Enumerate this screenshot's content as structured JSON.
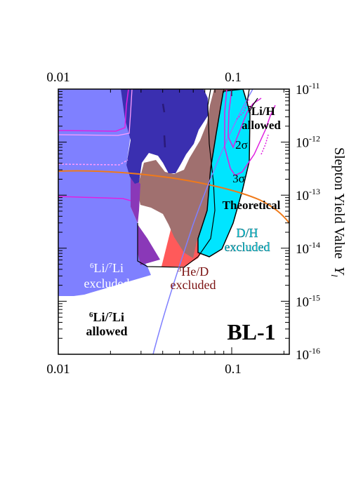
{
  "chart_data": {
    "type": "area",
    "title": "BL-1",
    "xlabel": "",
    "ylabel": "Slepton Yield Value",
    "ylabel_symbol": "Y",
    "ylabel_subscript": "l",
    "x_scale": "log",
    "y_scale": "log",
    "xlim": [
      0.01,
      0.2
    ],
    "ylim_exponents": [
      -16,
      -11
    ],
    "x_tick_labels": [
      "0.01",
      "0.1"
    ],
    "y_tick_labels": [
      {
        "base": "10",
        "exp": "-11"
      },
      {
        "base": "10",
        "exp": "-12"
      },
      {
        "base": "10",
        "exp": "-13"
      },
      {
        "base": "10",
        "exp": "-14"
      },
      {
        "base": "10",
        "exp": "-15"
      },
      {
        "base": "10",
        "exp": "-16"
      }
    ],
    "regions": [
      {
        "name": "6Li/7Li excluded",
        "color": "#7f80ff"
      },
      {
        "name": "3He/D excluded",
        "color": "#ff5a5a"
      },
      {
        "name": "D/H excluded",
        "color": "#00e5ff"
      },
      {
        "name": "overlap",
        "color": "#3a2fb0"
      }
    ],
    "curves": [
      {
        "name": "Theoretical",
        "color": "#f07a1a"
      },
      {
        "name": "2σ",
        "color": "#e020e0"
      },
      {
        "name": "3σ",
        "color": "#e020e0"
      }
    ],
    "annotations": {
      "li67_excluded": {
        "line1_pre": "6",
        "line1_mid": "Li/",
        "line1_sup": "7",
        "line1_post": "Li",
        "line2": "excluded"
      },
      "li67_allowed": {
        "line1_pre": "6",
        "line1_mid": "Li/",
        "line1_sup": "7",
        "line1_post": "Li",
        "line2": "allowed"
      },
      "he3d_excluded": {
        "line1_pre": "3",
        "line1_post": "He/D",
        "line2": "excluded"
      },
      "dh_excluded": {
        "line1": "D/H",
        "line2": "excluded"
      },
      "li7h_allowed": {
        "line1_pre": "7",
        "line1_post": "Li/H",
        "line2": "allowed"
      },
      "theoretical": "Theoretical",
      "two_sigma": "2σ",
      "three_sigma": "3σ",
      "panel": "BL-1"
    }
  }
}
